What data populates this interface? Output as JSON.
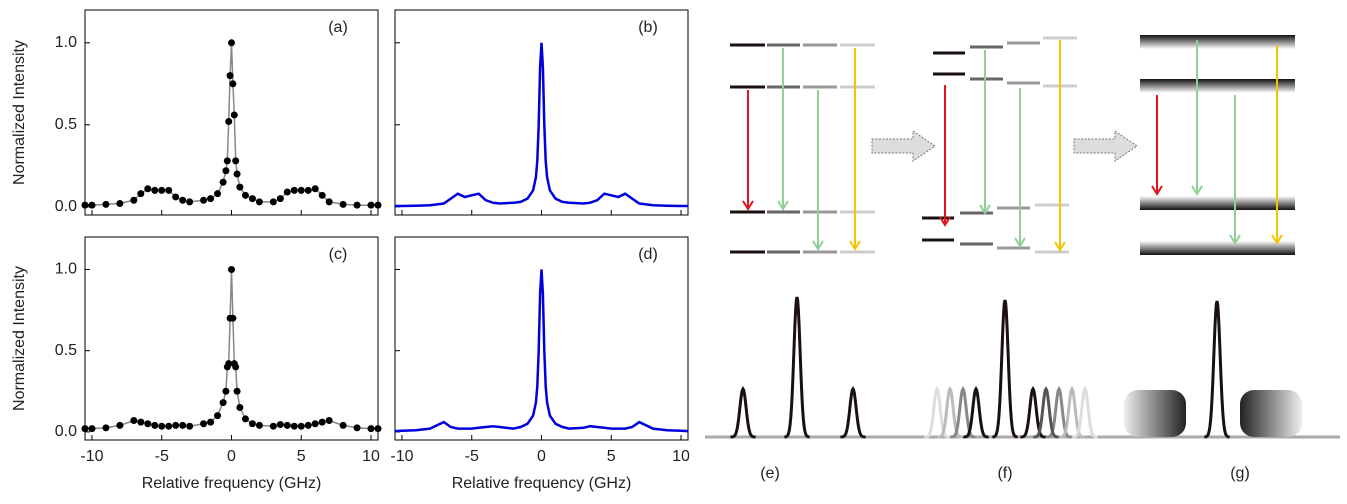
{
  "chart_data": [
    {
      "type": "line",
      "annotation": "(a)",
      "ylabel": "Normalized Intensity",
      "color": "#888888",
      "markers": true,
      "marker_color": "#000000",
      "x": [
        -10.5,
        -10,
        -9,
        -8,
        -7,
        -6.5,
        -6,
        -5.5,
        -5,
        -4.5,
        -4,
        -3.5,
        -3,
        -2,
        -1.5,
        -1,
        -0.6,
        -0.4,
        -0.3,
        -0.2,
        -0.1,
        0,
        0.1,
        0.2,
        0.3,
        0.4,
        0.6,
        1,
        1.5,
        2,
        3,
        3.5,
        4,
        4.5,
        5,
        5.5,
        6,
        6.5,
        7,
        8,
        9,
        10,
        10.5
      ],
      "values": [
        0.01,
        0.01,
        0.015,
        0.02,
        0.04,
        0.08,
        0.11,
        0.1,
        0.1,
        0.1,
        0.06,
        0.04,
        0.03,
        0.04,
        0.05,
        0.08,
        0.15,
        0.22,
        0.28,
        0.52,
        0.8,
        1.0,
        0.75,
        0.56,
        0.28,
        0.2,
        0.12,
        0.07,
        0.05,
        0.03,
        0.03,
        0.05,
        0.09,
        0.1,
        0.1,
        0.1,
        0.11,
        0.07,
        0.03,
        0.015,
        0.01,
        0.01,
        0.01
      ],
      "xlim": [
        -10.5,
        10.5
      ],
      "ylim": [
        -0.05,
        1.2
      ],
      "xticks": [
        -10,
        -5,
        0,
        5,
        10
      ],
      "yticks": [
        {
          "value": 0,
          "label": "0.0"
        },
        0.5,
        {
          "value": 1,
          "label": "1.0"
        }
      ]
    },
    {
      "type": "line",
      "annotation": "(b)",
      "color": "#0000dd",
      "markers": false,
      "x": [
        -10.5,
        -10,
        -9,
        -8,
        -7,
        -6.5,
        -6,
        -5.5,
        -5,
        -4.5,
        -4,
        -3.5,
        -3,
        -2,
        -1.5,
        -1,
        -0.6,
        -0.4,
        -0.3,
        -0.2,
        -0.1,
        0,
        0.1,
        0.2,
        0.3,
        0.4,
        0.6,
        1,
        1.5,
        2,
        3,
        3.5,
        4,
        4.5,
        5,
        5.5,
        6,
        6.5,
        7,
        8,
        9,
        10,
        10.5
      ],
      "values": [
        0.005,
        0.005,
        0.007,
        0.01,
        0.02,
        0.05,
        0.08,
        0.06,
        0.07,
        0.08,
        0.04,
        0.025,
        0.02,
        0.025,
        0.03,
        0.05,
        0.1,
        0.18,
        0.28,
        0.5,
        0.85,
        1.0,
        0.85,
        0.5,
        0.28,
        0.18,
        0.1,
        0.05,
        0.03,
        0.025,
        0.02,
        0.025,
        0.04,
        0.08,
        0.07,
        0.06,
        0.08,
        0.05,
        0.02,
        0.01,
        0.007,
        0.005,
        0.005
      ],
      "xlim": [
        -10.5,
        10.5
      ],
      "ylim": [
        -0.05,
        1.2
      ],
      "xticks": [
        -10,
        -5,
        0,
        5,
        10
      ],
      "yticks": [
        0,
        0.5,
        1
      ]
    },
    {
      "type": "line",
      "annotation": "(c)",
      "ylabel": "Normalized Intensity",
      "xlabel": "Relative frequency (GHz)",
      "color": "#888888",
      "markers": true,
      "marker_color": "#000000",
      "x": [
        -10.5,
        -10,
        -9,
        -8,
        -7,
        -6.5,
        -6,
        -5.5,
        -5,
        -4.5,
        -4,
        -3.5,
        -3,
        -2,
        -1.5,
        -1,
        -0.6,
        -0.4,
        -0.3,
        -0.2,
        -0.1,
        0,
        0.1,
        0.2,
        0.3,
        0.4,
        0.6,
        1,
        1.5,
        2,
        3,
        3.5,
        4,
        4.5,
        5,
        5.5,
        6,
        6.5,
        7,
        8,
        9,
        10,
        10.5
      ],
      "values": [
        0.02,
        0.02,
        0.025,
        0.04,
        0.07,
        0.06,
        0.05,
        0.04,
        0.035,
        0.035,
        0.04,
        0.04,
        0.035,
        0.05,
        0.06,
        0.1,
        0.18,
        0.25,
        0.4,
        0.42,
        0.7,
        1.0,
        0.7,
        0.42,
        0.4,
        0.25,
        0.15,
        0.08,
        0.05,
        0.04,
        0.035,
        0.045,
        0.04,
        0.035,
        0.035,
        0.04,
        0.05,
        0.06,
        0.07,
        0.04,
        0.025,
        0.02,
        0.02
      ],
      "xlim": [
        -10.5,
        10.5
      ],
      "ylim": [
        -0.05,
        1.2
      ],
      "xticks": [
        -10,
        -5,
        0,
        5,
        10
      ],
      "yticks": [
        {
          "value": 0,
          "label": "0.0"
        },
        0.5,
        {
          "value": 1,
          "label": "1.0"
        }
      ]
    },
    {
      "type": "line",
      "annotation": "(d)",
      "xlabel": "Relative frequency (GHz)",
      "color": "#0000dd",
      "markers": false,
      "x": [
        -10.5,
        -10,
        -9,
        -8,
        -7,
        -6.5,
        -6,
        -5.5,
        -5,
        -4.5,
        -4,
        -3.5,
        -3,
        -2,
        -1.5,
        -1,
        -0.6,
        -0.4,
        -0.3,
        -0.2,
        -0.1,
        0,
        0.1,
        0.2,
        0.3,
        0.4,
        0.6,
        1,
        1.5,
        2,
        3,
        3.5,
        4,
        4.5,
        5,
        5.5,
        6,
        6.5,
        7,
        8,
        9,
        10,
        10.5
      ],
      "values": [
        0.005,
        0.007,
        0.01,
        0.02,
        0.06,
        0.03,
        0.02,
        0.02,
        0.02,
        0.025,
        0.03,
        0.035,
        0.03,
        0.02,
        0.03,
        0.05,
        0.1,
        0.18,
        0.28,
        0.5,
        0.85,
        1.0,
        0.85,
        0.5,
        0.28,
        0.18,
        0.1,
        0.05,
        0.03,
        0.02,
        0.025,
        0.035,
        0.03,
        0.025,
        0.02,
        0.02,
        0.02,
        0.03,
        0.06,
        0.02,
        0.01,
        0.007,
        0.005
      ],
      "xlim": [
        -10.5,
        10.5
      ],
      "ylim": [
        -0.05,
        1.2
      ],
      "xticks": [
        -10,
        -5,
        0,
        5,
        10
      ],
      "yticks": [
        0,
        0.5,
        1
      ]
    }
  ],
  "diagram": {
    "labels": [
      "(e)",
      "(f)",
      "(g)"
    ]
  }
}
